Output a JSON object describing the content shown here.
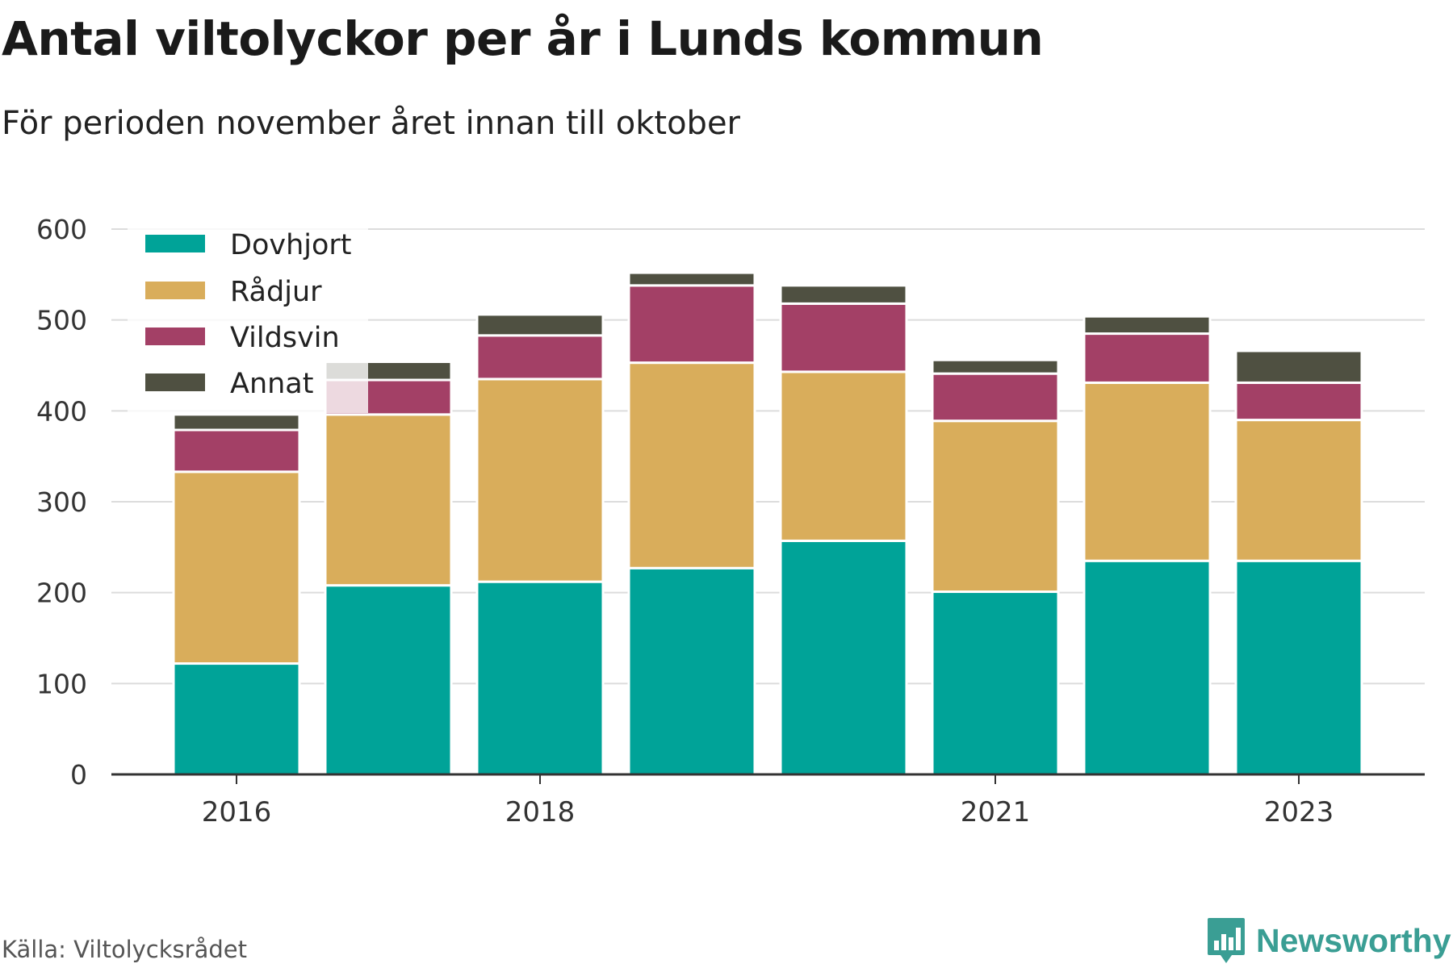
{
  "title": "Antal viltolyckor per år i Lunds kommun",
  "subtitle": "För perioden november året innan till oktober",
  "source": "Källa: Viltolycksrådet",
  "brand": "Newsworthy",
  "chart_data": {
    "type": "bar",
    "stacked": true,
    "categories": [
      "2016",
      "2017",
      "2018",
      "2019",
      "2020",
      "2021",
      "2022",
      "2023"
    ],
    "x_tick_labels": [
      "2016",
      "2018",
      "2021",
      "2023"
    ],
    "series": [
      {
        "name": "Dovhjort",
        "color": "#00a398",
        "values": [
          122,
          208,
          212,
          227,
          257,
          201,
          235,
          235
        ]
      },
      {
        "name": "Rådjur",
        "color": "#d9ad5b",
        "values": [
          211,
          188,
          223,
          226,
          186,
          188,
          196,
          155
        ]
      },
      {
        "name": "Vildsvin",
        "color": "#a34066",
        "values": [
          46,
          38,
          48,
          85,
          75,
          52,
          54,
          41
        ]
      },
      {
        "name": "Annat",
        "color": "#4f5041",
        "values": [
          17,
          20,
          23,
          14,
          20,
          15,
          19,
          35
        ]
      }
    ],
    "ylim": [
      0,
      600
    ],
    "yticks": [
      0,
      100,
      200,
      300,
      400,
      500,
      600
    ],
    "grid": true,
    "legend_position": "top-left"
  }
}
